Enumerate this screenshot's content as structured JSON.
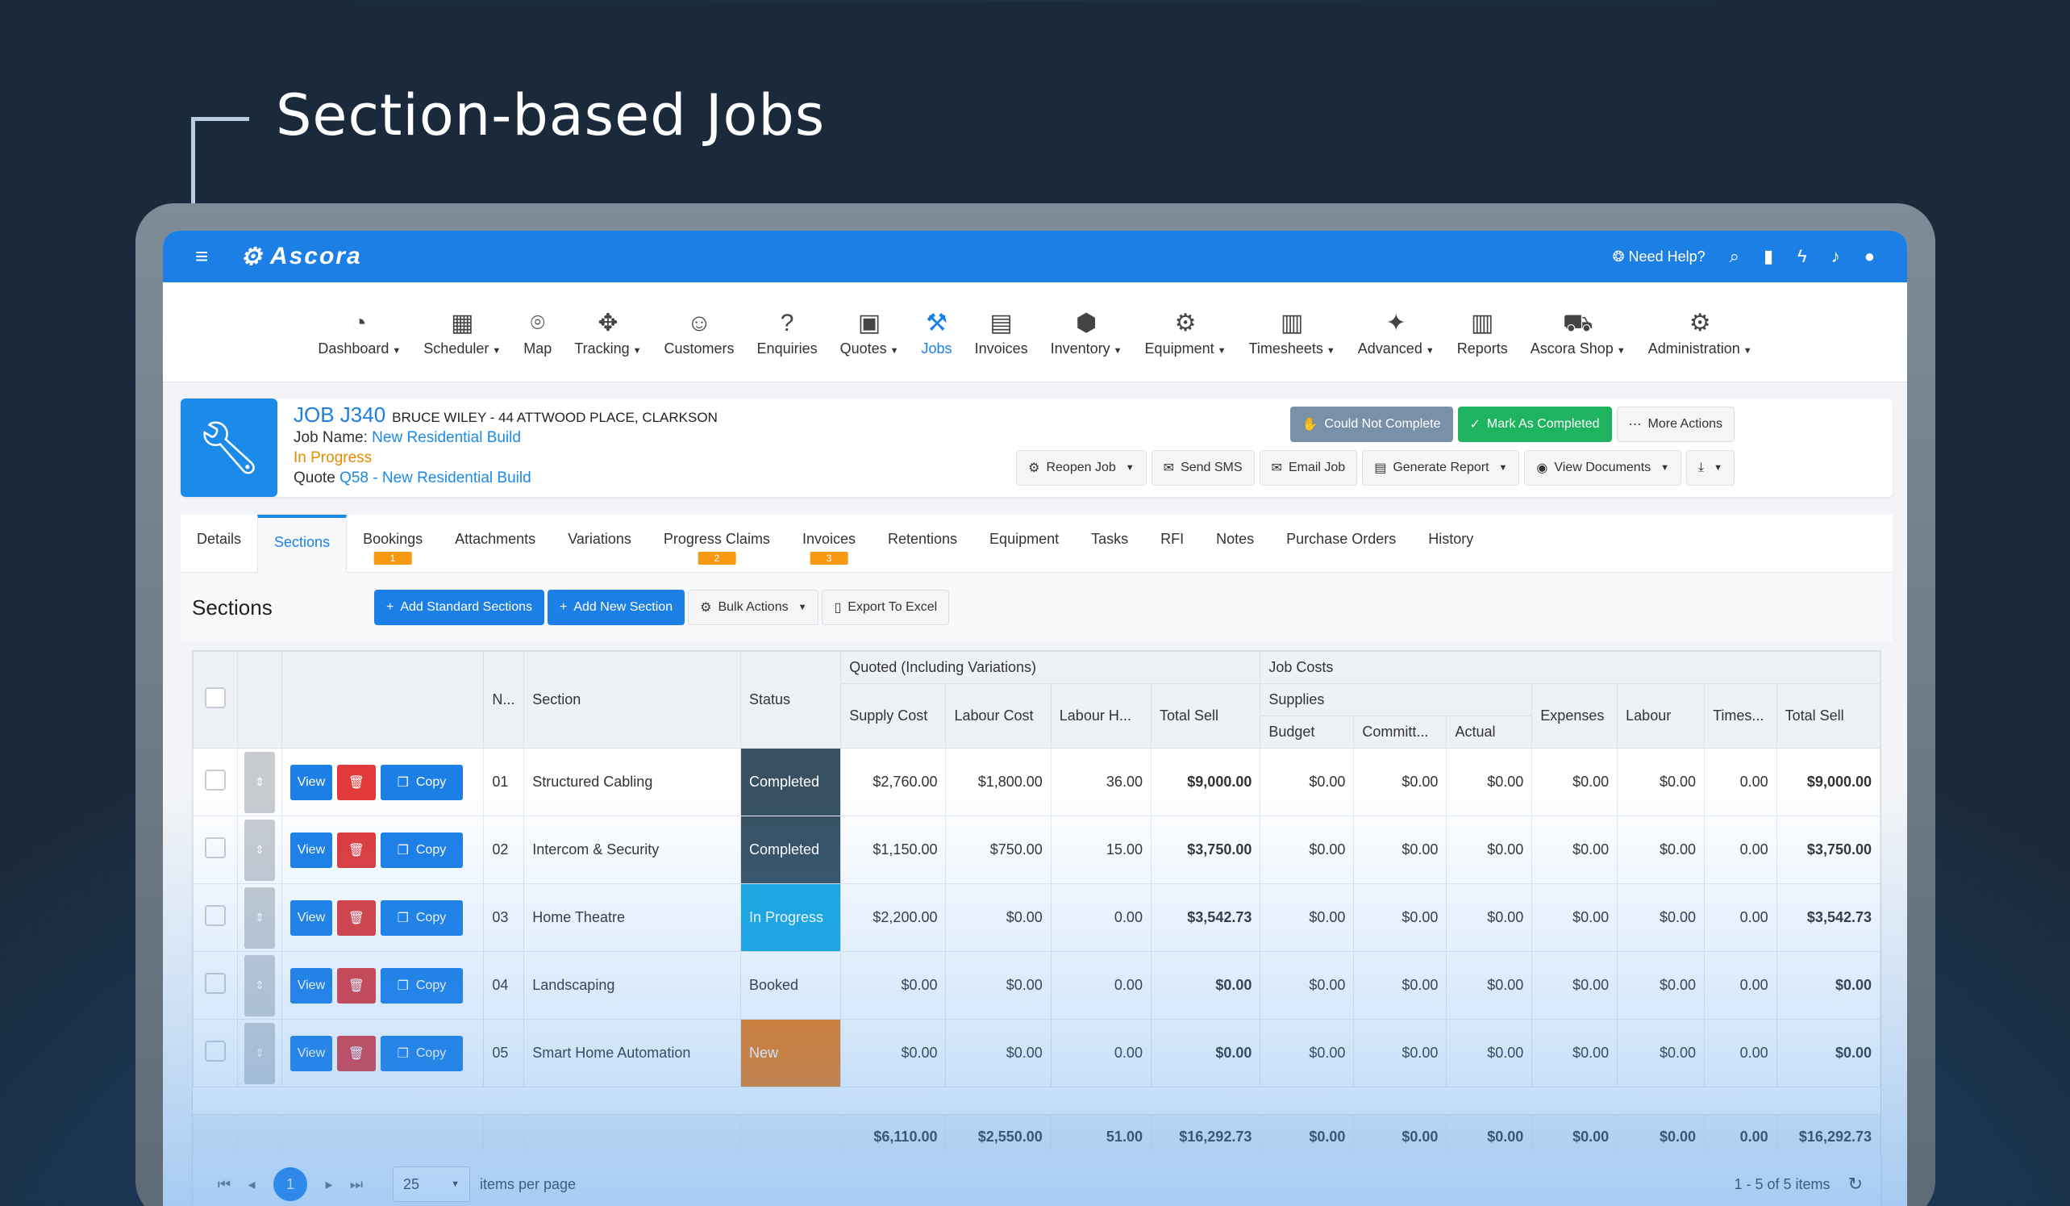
{
  "hero_title": "Section-based Jobs",
  "topbar": {
    "logo": "Ascora",
    "help": "Need Help?"
  },
  "nav": [
    {
      "label": "Dashboard",
      "icon": "dashboard-icon",
      "glyph": "◔",
      "caret": true
    },
    {
      "label": "Scheduler",
      "icon": "calendar-icon",
      "glyph": "▦",
      "caret": true
    },
    {
      "label": "Map",
      "icon": "map-pin-icon",
      "glyph": "⌾",
      "caret": false
    },
    {
      "label": "Tracking",
      "icon": "satellite-icon",
      "glyph": "✥",
      "caret": true
    },
    {
      "label": "Customers",
      "icon": "customers-icon",
      "glyph": "☺",
      "caret": false
    },
    {
      "label": "Enquiries",
      "icon": "question-icon",
      "glyph": "?",
      "caret": false
    },
    {
      "label": "Quotes",
      "icon": "briefcase-icon",
      "glyph": "▣",
      "caret": true
    },
    {
      "label": "Jobs",
      "icon": "wrench-icon",
      "glyph": "⚒",
      "caret": false,
      "active": true
    },
    {
      "label": "Invoices",
      "icon": "invoice-icon",
      "glyph": "▤",
      "caret": false
    },
    {
      "label": "Inventory",
      "icon": "boxes-icon",
      "glyph": "⬢",
      "caret": true
    },
    {
      "label": "Equipment",
      "icon": "gear-icon",
      "glyph": "⚙",
      "caret": true
    },
    {
      "label": "Timesheets",
      "icon": "timesheet-icon",
      "glyph": "▥",
      "caret": true
    },
    {
      "label": "Advanced",
      "icon": "magic-wand-icon",
      "glyph": "✦",
      "caret": true
    },
    {
      "label": "Reports",
      "icon": "bar-chart-icon",
      "glyph": "▥",
      "caret": false
    },
    {
      "label": "Ascora Shop",
      "icon": "cart-icon",
      "glyph": "⛟",
      "caret": true
    },
    {
      "label": "Administration",
      "icon": "admin-gears-icon",
      "glyph": "⚙",
      "caret": true
    }
  ],
  "job": {
    "number": "JOB J340",
    "address": "BRUCE WILEY - 44 ATTWOOD PLACE, CLARKSON",
    "name_label": "Job Name:",
    "name": "New Residential Build",
    "status": "In Progress",
    "quote_label": "Quote",
    "quote": "Q58 - New Residential Build"
  },
  "actions1": [
    "Could Not Complete",
    "Mark As Completed",
    "More Actions"
  ],
  "actions2": [
    "Reopen Job",
    "Send SMS",
    "Email Job",
    "Generate Report",
    "View Documents"
  ],
  "tabs": [
    {
      "label": "Details"
    },
    {
      "label": "Sections",
      "active": true
    },
    {
      "label": "Bookings",
      "badge": "1"
    },
    {
      "label": "Attachments"
    },
    {
      "label": "Variations"
    },
    {
      "label": "Progress Claims",
      "badge": "2"
    },
    {
      "label": "Invoices",
      "badge": "3"
    },
    {
      "label": "Retentions"
    },
    {
      "label": "Equipment"
    },
    {
      "label": "Tasks"
    },
    {
      "label": "RFI"
    },
    {
      "label": "Notes"
    },
    {
      "label": "Purchase Orders"
    },
    {
      "label": "History"
    }
  ],
  "sections_title": "Sections",
  "section_buttons": [
    "Add Standard Sections",
    "Add New Section",
    "Bulk Actions",
    "Export To Excel"
  ],
  "grid": {
    "group1": "Quoted (Including Variations)",
    "group2": "Job Costs",
    "supplies": "Supplies",
    "h_num": "N...",
    "h_section": "Section",
    "h_status": "Status",
    "h_supply": "Supply Cost",
    "h_labour": "Labour Cost",
    "h_labourh": "Labour H...",
    "h_totalsell": "Total Sell",
    "h_budget": "Budget",
    "h_committed": "Committ...",
    "h_actual": "Actual",
    "h_expenses": "Expenses",
    "h_jlabour": "Labour",
    "h_times": "Times...",
    "h_jtotal": "Total Sell",
    "btn_view": "View",
    "btn_copy": "Copy",
    "rows": [
      {
        "n": "01",
        "section": "Structured Cabling",
        "status": "Completed",
        "st": "completed",
        "supply": "$2,760.00",
        "labour": "$1,800.00",
        "hours": "36.00",
        "sell": "$9,000.00",
        "budget": "$0.00",
        "committed": "$0.00",
        "actual": "$0.00",
        "expenses": "$0.00",
        "jlabour": "$0.00",
        "times": "0.00",
        "jtotal": "$9,000.00"
      },
      {
        "n": "02",
        "section": "Intercom & Security",
        "status": "Completed",
        "st": "completed",
        "supply": "$1,150.00",
        "labour": "$750.00",
        "hours": "15.00",
        "sell": "$3,750.00",
        "budget": "$0.00",
        "committed": "$0.00",
        "actual": "$0.00",
        "expenses": "$0.00",
        "jlabour": "$0.00",
        "times": "0.00",
        "jtotal": "$3,750.00"
      },
      {
        "n": "03",
        "section": "Home Theatre",
        "status": "In Progress",
        "st": "progress",
        "supply": "$2,200.00",
        "labour": "$0.00",
        "hours": "0.00",
        "sell": "$3,542.73",
        "budget": "$0.00",
        "committed": "$0.00",
        "actual": "$0.00",
        "expenses": "$0.00",
        "jlabour": "$0.00",
        "times": "0.00",
        "jtotal": "$3,542.73"
      },
      {
        "n": "04",
        "section": "Landscaping",
        "status": "Booked",
        "st": "booked",
        "supply": "$0.00",
        "labour": "$0.00",
        "hours": "0.00",
        "sell": "$0.00",
        "budget": "$0.00",
        "committed": "$0.00",
        "actual": "$0.00",
        "expenses": "$0.00",
        "jlabour": "$0.00",
        "times": "0.00",
        "jtotal": "$0.00"
      },
      {
        "n": "05",
        "section": "Smart Home Automation",
        "status": "New",
        "st": "new",
        "supply": "$0.00",
        "labour": "$0.00",
        "hours": "0.00",
        "sell": "$0.00",
        "budget": "$0.00",
        "committed": "$0.00",
        "actual": "$0.00",
        "expenses": "$0.00",
        "jlabour": "$0.00",
        "times": "0.00",
        "jtotal": "$0.00"
      }
    ],
    "totals": {
      "supply": "$6,110.00",
      "labour": "$2,550.00",
      "hours": "51.00",
      "sell": "$16,292.73",
      "budget": "$0.00",
      "committed": "$0.00",
      "actual": "$0.00",
      "expenses": "$0.00",
      "jlabour": "$0.00",
      "times": "0.00",
      "jtotal": "$16,292.73"
    }
  },
  "pager": {
    "page": "1",
    "per_page": "25",
    "per_page_label": "items per page",
    "summary": "1 - 5 of 5 items"
  }
}
